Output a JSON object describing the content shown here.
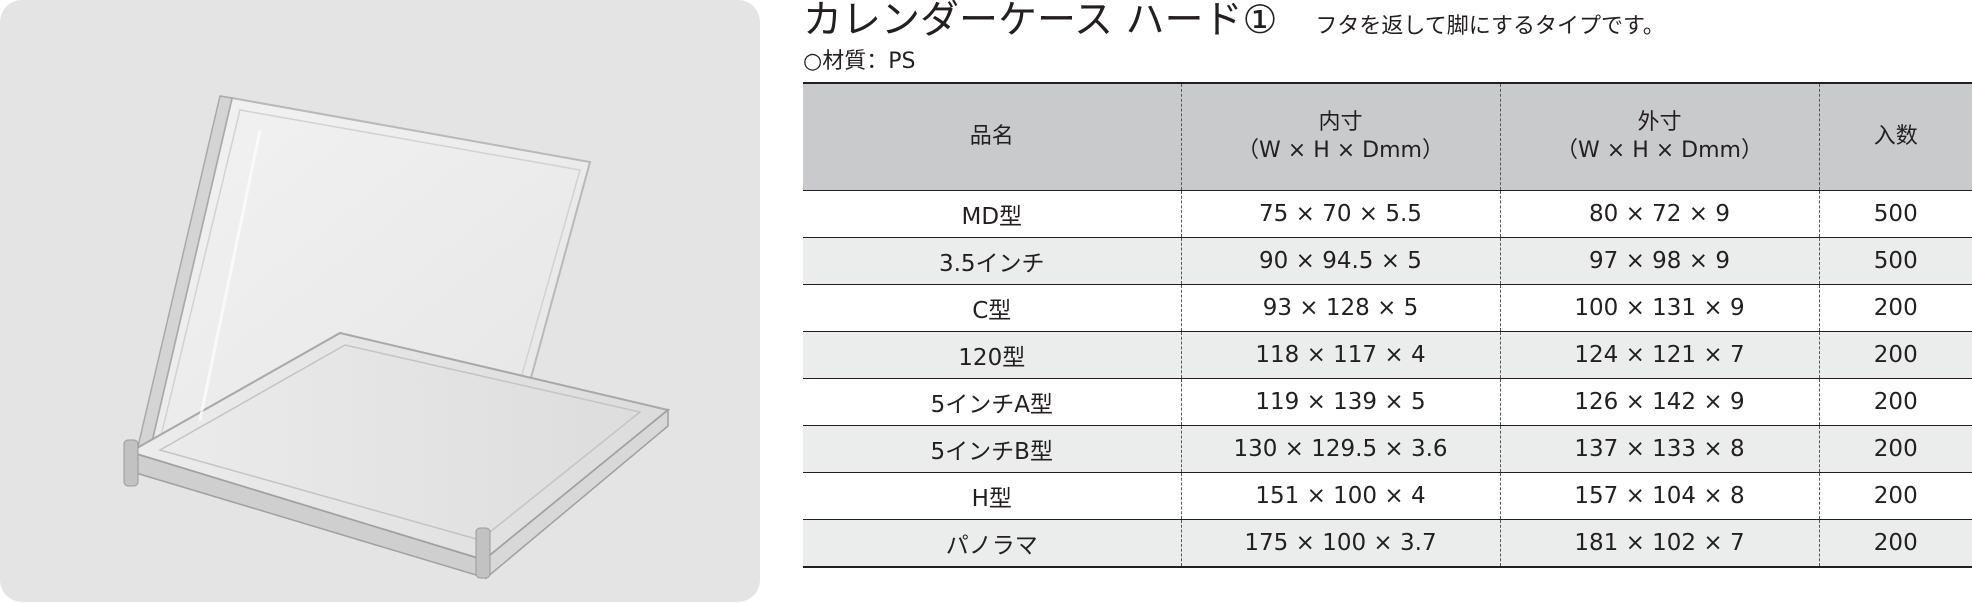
{
  "product": {
    "title": "カレンダーケース ハード①",
    "subtitle": "フタを返して脚にするタイプです。",
    "material": "○材質：PS"
  },
  "table": {
    "headers": [
      {
        "line1": "品名",
        "line2": ""
      },
      {
        "line1": "内寸",
        "line2": "（W × H × Dmm）"
      },
      {
        "line1": "外寸",
        "line2": "（W × H × Dmm）"
      },
      {
        "line1": "入数",
        "line2": ""
      }
    ],
    "rows": [
      [
        "MD型",
        "75 × 70 × 5.5",
        "80 × 72 × 9",
        "500"
      ],
      [
        "3.5インチ",
        "90 × 94.5 × 5",
        "97 × 98 × 9",
        "500"
      ],
      [
        "C型",
        "93 × 128 × 5",
        "100 × 131 × 9",
        "200"
      ],
      [
        "120型",
        "118 × 117 × 4",
        "124 × 121 × 7",
        "200"
      ],
      [
        "5インチA型",
        "119 × 139 × 5",
        "126 × 142 × 9",
        "200"
      ],
      [
        "5インチB型",
        "130 × 129.5 × 3.6",
        "137 × 133 × 8",
        "200"
      ],
      [
        "H型",
        "151 × 100 × 4",
        "157 × 104 × 8",
        "200"
      ],
      [
        "パノラマ",
        "175 × 100 × 3.7",
        "181 × 102 × 7",
        "200"
      ]
    ]
  }
}
